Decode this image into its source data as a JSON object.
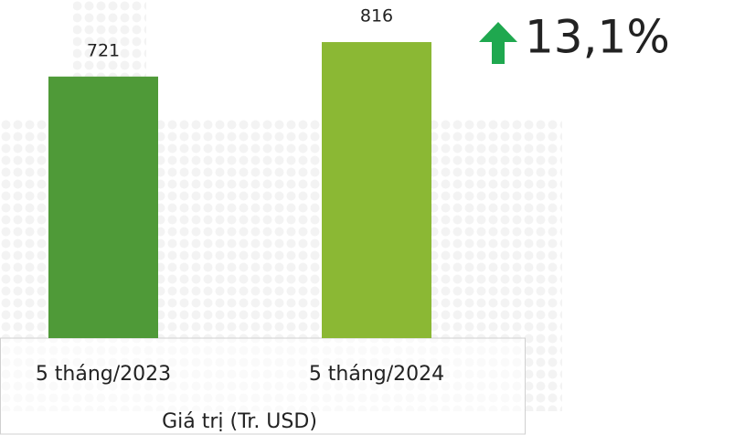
{
  "chart_data": {
    "type": "bar",
    "categories": [
      "5 tháng/2023",
      "5 tháng/2024"
    ],
    "values": [
      721,
      816
    ],
    "colors": [
      "#4f9a38",
      "#8bb834"
    ],
    "x_label": "Giá trị (Tr. USD)",
    "annotation": "13,1%",
    "annotation_color": "#1fa84f"
  }
}
